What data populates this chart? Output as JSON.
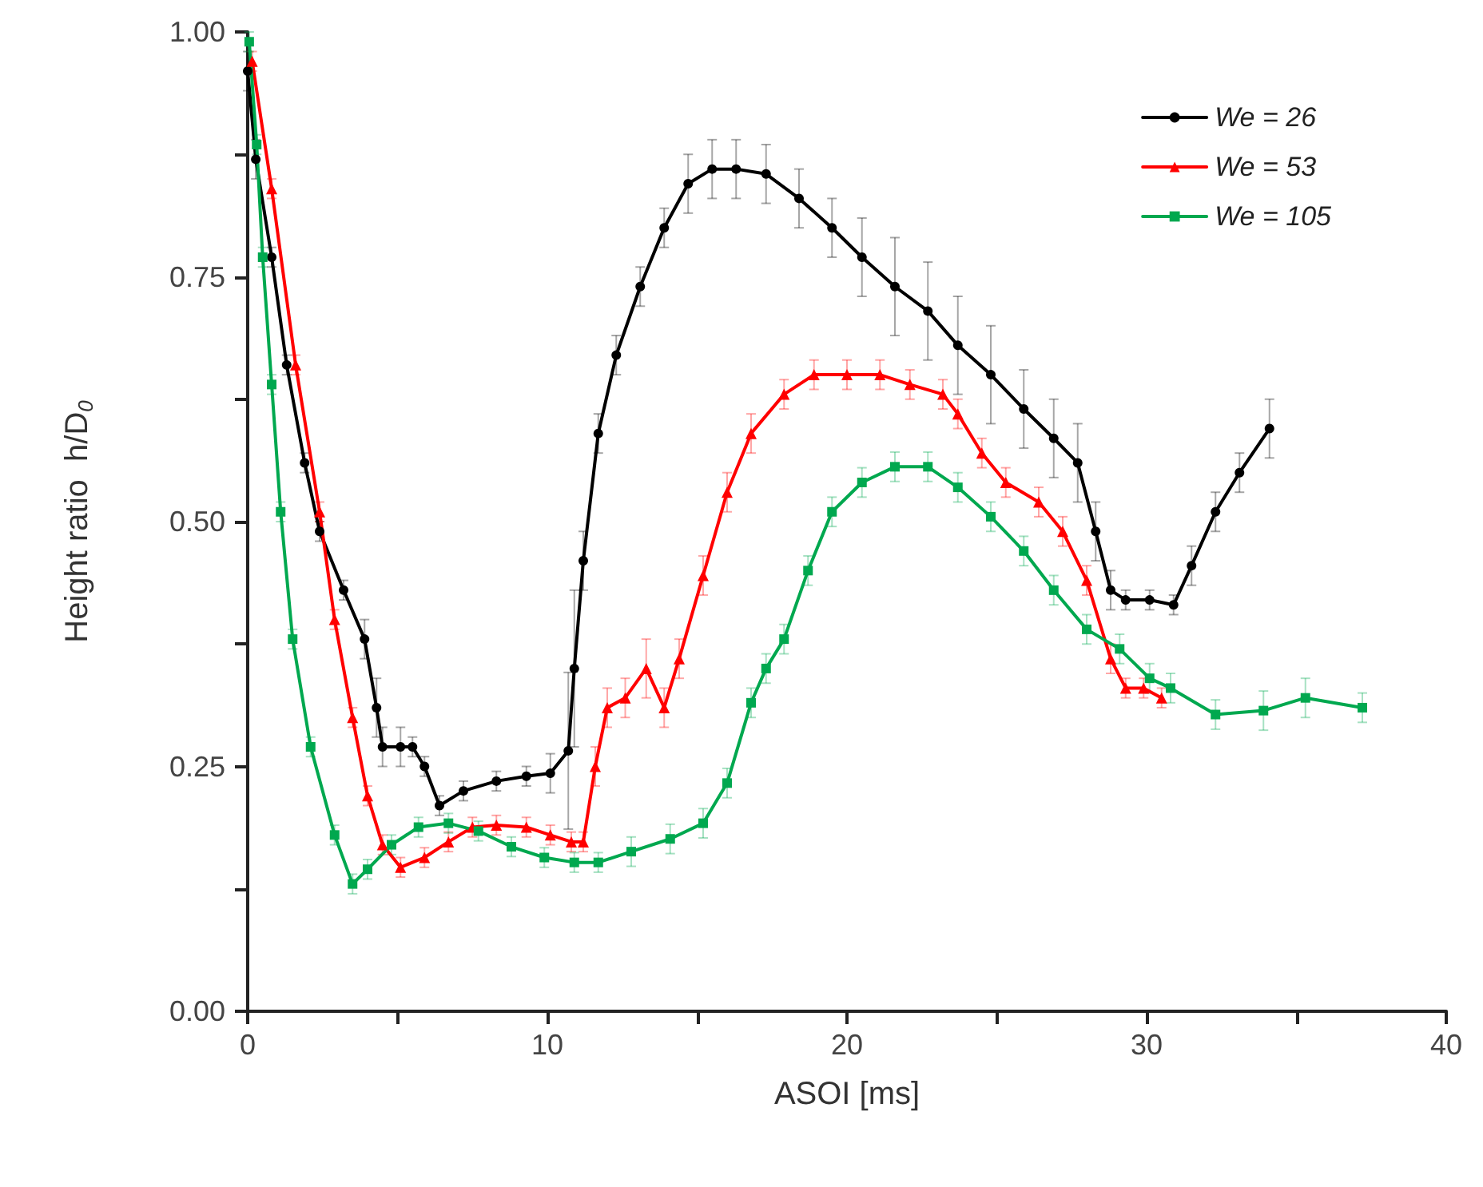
{
  "chart_data": {
    "type": "line",
    "xlabel": "ASOI [ms]",
    "ylabel": "Height ratio  h/D$_{0}$",
    "xlim": [
      0,
      40
    ],
    "xticks": [
      0,
      {
        "value": 5,
        "label": null
      },
      10,
      {
        "value": 15,
        "label": null
      },
      20,
      {
        "value": 25,
        "label": null
      },
      30,
      {
        "value": 35,
        "label": null
      },
      40
    ],
    "ylim": [
      0,
      1
    ],
    "yticks": [
      {
        "value": 0,
        "label": "0.00"
      },
      {
        "value": 0.125,
        "label": null
      },
      {
        "value": 0.25,
        "label": "0.25"
      },
      {
        "value": 0.375,
        "label": null
      },
      {
        "value": 0.5,
        "label": "0.50"
      },
      {
        "value": 0.625,
        "label": null
      },
      {
        "value": 0.75,
        "label": "0.75"
      },
      {
        "value": 0.875,
        "label": null
      },
      {
        "value": 1,
        "label": "1.00"
      }
    ],
    "grid": false,
    "legend": "top right",
    "line_style": "solid",
    "series": [
      {
        "name": "We = 26",
        "color": "#000000",
        "marker": "circle",
        "x": [
          0,
          0.27,
          0.8,
          1.3,
          1.9,
          2.4,
          3.2,
          3.9,
          4.3,
          4.5,
          5.1,
          5.5,
          5.9,
          6.4,
          7.2,
          8.3,
          9.3,
          10.1,
          10.7,
          10.9,
          11.2,
          11.7,
          12.3,
          13.1,
          13.9,
          14.7,
          15.5,
          16.3,
          17.3,
          18.4,
          19.5,
          20.5,
          21.6,
          22.7,
          23.7,
          24.8,
          25.9,
          26.9,
          27.7,
          28.3,
          28.8,
          29.3,
          30.1,
          30.9,
          31.5,
          32.3,
          33.1,
          34.1
        ],
        "values": [
          0.96,
          0.87,
          0.77,
          0.66,
          0.56,
          0.49,
          0.43,
          0.38,
          0.31,
          0.27,
          0.27,
          0.27,
          0.25,
          0.21,
          0.225,
          0.235,
          0.24,
          0.243,
          0.266,
          0.35,
          0.46,
          0.59,
          0.67,
          0.74,
          0.8,
          0.845,
          0.86,
          0.86,
          0.855,
          0.83,
          0.8,
          0.77,
          0.74,
          0.715,
          0.68,
          0.65,
          0.615,
          0.585,
          0.56,
          0.49,
          0.43,
          0.42,
          0.42,
          0.415,
          0.455,
          0.51,
          0.55,
          0.595
        ],
        "errors": [
          0.02,
          0.02,
          0.01,
          0.01,
          0.01,
          0.01,
          0.01,
          0.02,
          0.03,
          0.02,
          0.02,
          0.01,
          0.01,
          0.01,
          0.01,
          0.01,
          0.01,
          0.02,
          0.08,
          0.08,
          0.03,
          0.02,
          0.02,
          0.02,
          0.02,
          0.03,
          0.03,
          0.03,
          0.03,
          0.03,
          0.03,
          0.04,
          0.05,
          0.05,
          0.05,
          0.05,
          0.04,
          0.04,
          0.04,
          0.03,
          0.02,
          0.01,
          0.01,
          0.01,
          0.02,
          0.02,
          0.02,
          0.03
        ]
      },
      {
        "name": "We = 53",
        "color": "#ff0000",
        "marker": "triangle",
        "x": [
          0.15,
          0.8,
          1.6,
          2.4,
          2.9,
          3.5,
          4.0,
          4.5,
          5.1,
          5.9,
          6.7,
          7.5,
          8.3,
          9.3,
          10.1,
          10.8,
          11.2,
          11.6,
          12.0,
          12.6,
          13.3,
          13.9,
          14.4,
          15.2,
          16.0,
          16.8,
          17.9,
          18.9,
          20.0,
          21.1,
          22.1,
          23.2,
          23.7,
          24.5,
          25.3,
          26.4,
          27.2,
          28.0,
          28.8,
          29.3,
          29.9,
          30.5
        ],
        "values": [
          0.97,
          0.84,
          0.66,
          0.51,
          0.4,
          0.3,
          0.22,
          0.17,
          0.147,
          0.157,
          0.173,
          0.188,
          0.19,
          0.188,
          0.18,
          0.173,
          0.173,
          0.25,
          0.31,
          0.32,
          0.35,
          0.31,
          0.36,
          0.445,
          0.53,
          0.59,
          0.63,
          0.65,
          0.65,
          0.65,
          0.64,
          0.63,
          0.61,
          0.57,
          0.54,
          0.52,
          0.49,
          0.44,
          0.36,
          0.33,
          0.33,
          0.32
        ],
        "errors": [
          0.01,
          0.01,
          0.01,
          0.01,
          0.01,
          0.01,
          0.01,
          0.01,
          0.01,
          0.01,
          0.01,
          0.01,
          0.01,
          0.01,
          0.01,
          0.01,
          0.01,
          0.02,
          0.02,
          0.02,
          0.03,
          0.02,
          0.02,
          0.02,
          0.02,
          0.02,
          0.015,
          0.015,
          0.015,
          0.015,
          0.015,
          0.015,
          0.015,
          0.015,
          0.015,
          0.015,
          0.015,
          0.015,
          0.015,
          0.01,
          0.01,
          0.01
        ]
      },
      {
        "name": "We = 105",
        "color": "#00a84f",
        "marker": "square",
        "x": [
          0.05,
          0.3,
          0.5,
          0.8,
          1.1,
          1.5,
          2.1,
          2.9,
          3.5,
          4.0,
          4.8,
          5.7,
          6.7,
          7.7,
          8.8,
          9.9,
          10.9,
          11.7,
          12.8,
          14.1,
          15.2,
          16.0,
          16.8,
          17.3,
          17.9,
          18.7,
          19.5,
          20.5,
          21.6,
          22.7,
          23.7,
          24.8,
          25.9,
          26.9,
          28.0,
          29.1,
          30.1,
          30.8,
          32.3,
          33.9,
          35.3,
          37.2
        ],
        "values": [
          0.99,
          0.885,
          0.77,
          0.64,
          0.51,
          0.38,
          0.27,
          0.18,
          0.13,
          0.145,
          0.17,
          0.188,
          0.192,
          0.184,
          0.168,
          0.157,
          0.152,
          0.152,
          0.163,
          0.176,
          0.192,
          0.233,
          0.315,
          0.35,
          0.38,
          0.45,
          0.51,
          0.54,
          0.556,
          0.556,
          0.535,
          0.505,
          0.47,
          0.43,
          0.39,
          0.37,
          0.34,
          0.33,
          0.303,
          0.307,
          0.32,
          0.31
        ],
        "errors": [
          0.01,
          0.01,
          0.01,
          0.01,
          0.01,
          0.01,
          0.01,
          0.01,
          0.01,
          0.01,
          0.01,
          0.01,
          0.01,
          0.01,
          0.01,
          0.01,
          0.01,
          0.01,
          0.015,
          0.015,
          0.015,
          0.015,
          0.015,
          0.015,
          0.015,
          0.015,
          0.015,
          0.015,
          0.015,
          0.015,
          0.015,
          0.015,
          0.015,
          0.015,
          0.015,
          0.015,
          0.015,
          0.015,
          0.015,
          0.02,
          0.02,
          0.015
        ]
      }
    ]
  }
}
